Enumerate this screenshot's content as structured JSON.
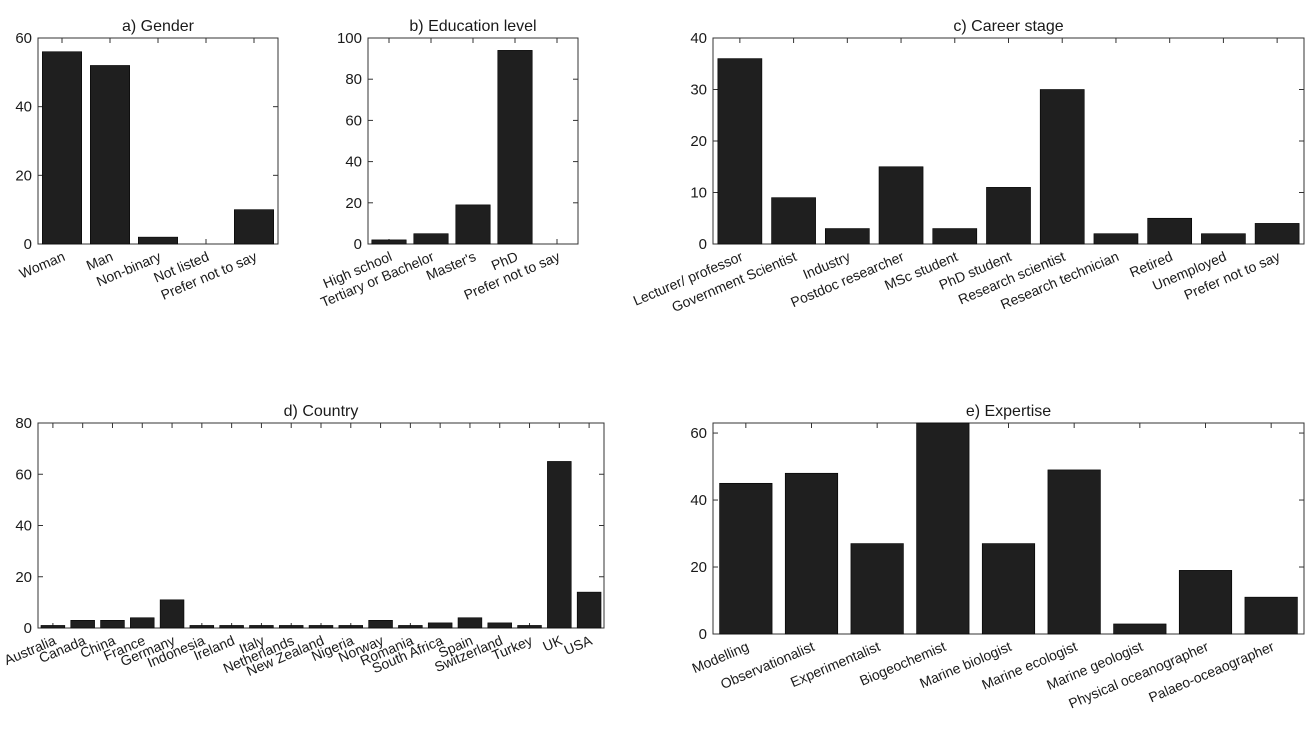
{
  "chart_data": [
    {
      "type": "bar",
      "title": "a) Gender",
      "categories": [
        "Woman",
        "Man",
        "Non-binary",
        "Not listed",
        "Prefer not to say"
      ],
      "values": [
        56,
        52,
        2,
        0,
        10
      ],
      "ylim": [
        0,
        60
      ],
      "yticks": [
        0,
        20,
        40,
        60
      ],
      "color": "#1f1f1f"
    },
    {
      "type": "bar",
      "title": "b) Education level",
      "categories": [
        "High school",
        "Tertiary or Bachelor",
        "Master's",
        "PhD",
        "Prefer not to say"
      ],
      "values": [
        2,
        5,
        19,
        94,
        0
      ],
      "ylim": [
        0,
        100
      ],
      "yticks": [
        0,
        20,
        40,
        60,
        80,
        100
      ],
      "color": "#1f1f1f"
    },
    {
      "type": "bar",
      "title": "c) Career stage",
      "categories": [
        "Lecturer/ professor",
        "Government Scientist",
        "Industry",
        "Postdoc researcher",
        "MSc student",
        "PhD student",
        "Research scientist",
        "Research technician",
        "Retired",
        "Unemployed",
        "Prefer not to say"
      ],
      "values": [
        36,
        9,
        3,
        15,
        3,
        11,
        30,
        2,
        5,
        2,
        4
      ],
      "ylim": [
        0,
        40
      ],
      "yticks": [
        0,
        10,
        20,
        30,
        40
      ],
      "color": "#1f1f1f"
    },
    {
      "type": "bar",
      "title": "d) Country",
      "categories": [
        "Australia",
        "Canada",
        "China",
        "France",
        "Germany",
        "Indonesia",
        "Ireland",
        "Italy",
        "Netherlands",
        "New Zealand",
        "Nigeria",
        "Norway",
        "Romania",
        "South Africa",
        "Spain",
        "Switzerland",
        "Turkey",
        "UK",
        "USA"
      ],
      "values": [
        1,
        3,
        3,
        4,
        11,
        1,
        1,
        1,
        1,
        1,
        1,
        3,
        1,
        2,
        4,
        2,
        1,
        65,
        14
      ],
      "ylim": [
        0,
        80
      ],
      "yticks": [
        0,
        20,
        40,
        60,
        80
      ],
      "color": "#1f1f1f"
    },
    {
      "type": "bar",
      "title": "e) Expertise",
      "categories": [
        "Modelling",
        "Observationalist",
        "Experimentalist",
        "Biogeochemist",
        "Marine biologist",
        "Marine ecologist",
        "Marine geologist",
        "Physical oceanographer",
        "Palaeo-oceaographer"
      ],
      "values": [
        45,
        48,
        27,
        63,
        27,
        49,
        3,
        19,
        11
      ],
      "ylim": [
        0,
        63
      ],
      "yticks": [
        0,
        20,
        40,
        60
      ],
      "color": "#1f1f1f"
    }
  ]
}
